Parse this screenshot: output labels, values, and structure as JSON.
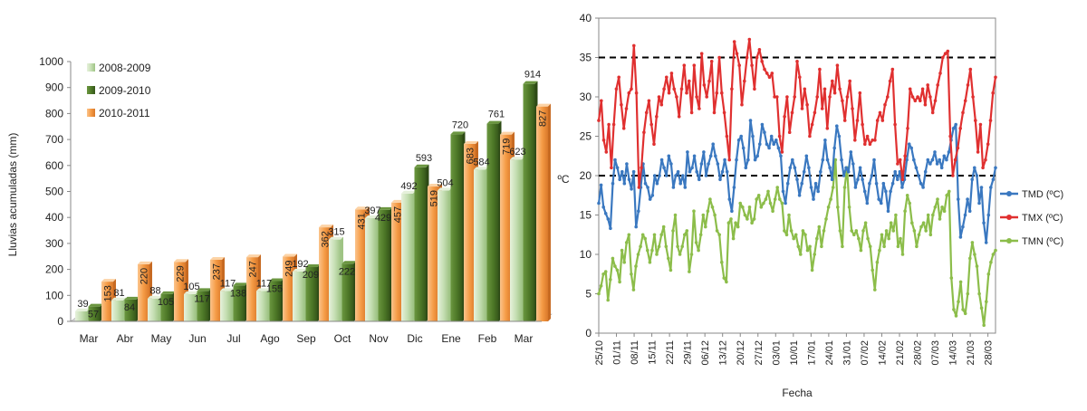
{
  "chart_data": [
    {
      "type": "bar",
      "ylabel": "Lluvias acumuladas (mm)",
      "xlabel": "",
      "ylim": [
        0,
        1000
      ],
      "yticks": [
        0,
        100,
        200,
        300,
        400,
        500,
        600,
        700,
        800,
        900,
        1000
      ],
      "categories": [
        "Mar",
        "Abr",
        "May",
        "Jun",
        "Jul",
        "Ago",
        "Sep",
        "Oct",
        "Nov",
        "Dic",
        "Ene",
        "Feb",
        "Mar"
      ],
      "legend_position": "top-left",
      "grid": false,
      "series": [
        {
          "name": "2008-2009",
          "color": "#c6dfb4",
          "values": [
            39,
            81,
            88,
            105,
            117,
            117,
            192,
            315,
            397,
            492,
            504,
            584,
            623
          ]
        },
        {
          "name": "2009-2010",
          "color": "#4f7a28",
          "values": [
            57,
            84,
            105,
            117,
            138,
            155,
            209,
            222,
            429,
            593,
            720,
            761,
            914
          ]
        },
        {
          "name": "2010-2011",
          "color": "#f59b45",
          "values": [
            153,
            220,
            229,
            237,
            247,
            249,
            362,
            431,
            457,
            519,
            683,
            719,
            827
          ]
        }
      ]
    },
    {
      "type": "line",
      "xlabel": "Fecha",
      "ylabel": "ºC",
      "ylim": [
        0,
        40
      ],
      "yticks": [
        0,
        5,
        10,
        15,
        20,
        25,
        30,
        35,
        40
      ],
      "x_tick_labels": [
        "25/10",
        "01/11",
        "08/11",
        "15/11",
        "22/11",
        "29/11",
        "06/12",
        "13/12",
        "20/12",
        "27/12",
        "03/01",
        "10/01",
        "17/01",
        "24/01",
        "31/01",
        "07/02",
        "14/02",
        "21/02",
        "28/02",
        "07/03",
        "14/03",
        "21/03",
        "28/03"
      ],
      "x_start": "2010-10-25",
      "x_end": "2011-03-31",
      "reference_lines": [
        20,
        35
      ],
      "legend_position": "right",
      "grid": false,
      "series": [
        {
          "name": "TMD (ºC)",
          "color": "#3a78c0",
          "values": [
            16.5,
            18.8,
            16,
            15.2,
            14.5,
            13.3,
            19,
            22,
            21,
            19.5,
            20.5,
            19,
            21.5,
            19.5,
            18.3,
            20.5,
            13.5,
            15.5,
            18.5,
            21.5,
            19,
            18.5,
            17,
            17.5,
            20,
            19,
            20,
            22,
            21,
            20,
            22.5,
            21.5,
            18.5,
            20,
            20.5,
            19,
            20,
            18.5,
            23,
            20.5,
            21,
            22.5,
            20.5,
            19.5,
            21.5,
            23,
            20,
            21.5,
            22.5,
            24,
            22.5,
            21.5,
            19.5,
            20.5,
            22,
            20.5,
            17,
            15.5,
            18.5,
            22,
            24.5,
            25,
            23.5,
            21,
            22,
            27,
            25,
            22,
            22.5,
            24,
            26.5,
            25.5,
            24,
            23.5,
            25,
            24,
            24.5,
            23.5,
            22.5,
            18,
            16.5,
            19,
            21,
            22,
            21,
            19.5,
            17.5,
            19,
            20.5,
            22.5,
            21,
            18.5,
            17,
            19,
            18,
            20.5,
            22,
            24.5,
            22,
            21,
            19.5,
            23.5,
            26.3,
            25,
            22,
            20,
            21,
            20.5,
            23,
            21.5,
            18.5,
            19.5,
            21,
            19.5,
            18,
            16.5,
            19,
            20,
            22,
            19,
            17,
            16.5,
            19,
            18,
            15.5,
            18,
            19,
            20.5,
            19.5,
            20.5,
            18.5,
            19.5,
            22,
            24,
            23.5,
            22,
            21,
            20,
            19,
            18.5,
            20.5,
            22,
            21.5,
            22,
            23,
            21.5,
            22,
            21,
            22.5,
            22,
            23,
            24.5,
            26,
            26.5,
            17,
            12.2,
            13.5,
            15,
            17,
            15.5,
            19.5,
            21,
            20,
            16.5,
            18.5,
            14,
            11.5,
            15,
            18.5,
            19.5,
            21
          ]
        },
        {
          "name": "TMX (ºC)",
          "color": "#e03030",
          "values": [
            27,
            29.5,
            24.5,
            23,
            26.5,
            21,
            26.5,
            31,
            32.5,
            29,
            26,
            28.5,
            30.5,
            31,
            36.5,
            30.5,
            18.5,
            21,
            25.5,
            28,
            29.5,
            26.5,
            24,
            27.5,
            30,
            29,
            31,
            32.5,
            30.5,
            33,
            31,
            30,
            27.5,
            31,
            34,
            30.5,
            32,
            28,
            34,
            30,
            28.5,
            35.5,
            31.5,
            30,
            32,
            34.5,
            28,
            30.5,
            35,
            30.5,
            28,
            25,
            22,
            31,
            37,
            35.5,
            34,
            29,
            32,
            35,
            37.3,
            34,
            31,
            35,
            36,
            34.5,
            33.5,
            33,
            32.5,
            33,
            30,
            30,
            25,
            23,
            27.5,
            30,
            25.5,
            28,
            30,
            34.5,
            32.5,
            28.5,
            31,
            29,
            25,
            26.5,
            28,
            30,
            33.5,
            28.5,
            31,
            26,
            30,
            32,
            30.5,
            34,
            31,
            29.5,
            27,
            30,
            32,
            28.5,
            24.5,
            27,
            30.5,
            26.5,
            24,
            25,
            24,
            24.5,
            24.5,
            27,
            28,
            27,
            29,
            30,
            32,
            33.5,
            26.5,
            21.5,
            22,
            19.5,
            22.5,
            26,
            31,
            30,
            29.5,
            30,
            29.5,
            31,
            29,
            31.5,
            30,
            28,
            29.5,
            31.5,
            33,
            35,
            35.5,
            35.8,
            25,
            20,
            22,
            23.5,
            26,
            28,
            29.5,
            31.5,
            33.5,
            30,
            27,
            23,
            26.5,
            21,
            22,
            24,
            27,
            30.5,
            32.5
          ]
        },
        {
          "name": "TMN (ºC)",
          "color": "#8cbd4a",
          "values": [
            5,
            6,
            7.5,
            7.8,
            4.2,
            6.8,
            9.5,
            8.5,
            8,
            6.5,
            10.5,
            9,
            11.5,
            12.5,
            7.5,
            5.5,
            8.5,
            10,
            11,
            12.5,
            12,
            10.5,
            9,
            10.5,
            12.5,
            10,
            11,
            12.5,
            13.5,
            11,
            9.5,
            8,
            13,
            15,
            11,
            10,
            11,
            12.5,
            13,
            7.8,
            10,
            15.5,
            11.5,
            10.5,
            12.5,
            15,
            13.5,
            15.5,
            17,
            16,
            15,
            13,
            12.5,
            9,
            7,
            6.5,
            14,
            14.5,
            12,
            14,
            13.5,
            16.5,
            16,
            15,
            14.5,
            16,
            14,
            14.5,
            17,
            17.5,
            16,
            16.5,
            17,
            18,
            16.5,
            15.5,
            17,
            18.5,
            17,
            16.5,
            13,
            12.5,
            15,
            13,
            12,
            12.5,
            11,
            10,
            13,
            12.5,
            10.5,
            11,
            8,
            10,
            12,
            13.5,
            11,
            13,
            14.5,
            16,
            17,
            18.5,
            22,
            16,
            13,
            11,
            18.5,
            21,
            16,
            13,
            12.5,
            13,
            12,
            10.5,
            13,
            14,
            12,
            11,
            8,
            5.5,
            9,
            10.5,
            12.5,
            11,
            13,
            12,
            14,
            13,
            15,
            11,
            12,
            10,
            15.5,
            17.5,
            16.5,
            14,
            13,
            11,
            12.5,
            13.5,
            14,
            13,
            15,
            12.5,
            15,
            16,
            17,
            14.5,
            16,
            15.5,
            17.5,
            18,
            7,
            3,
            2.2,
            4,
            6.5,
            3,
            2.5,
            5,
            9.5,
            11.5,
            10,
            8.5,
            5,
            3.2,
            1,
            4,
            7.5,
            9,
            10,
            10.5
          ]
        }
      ]
    }
  ]
}
